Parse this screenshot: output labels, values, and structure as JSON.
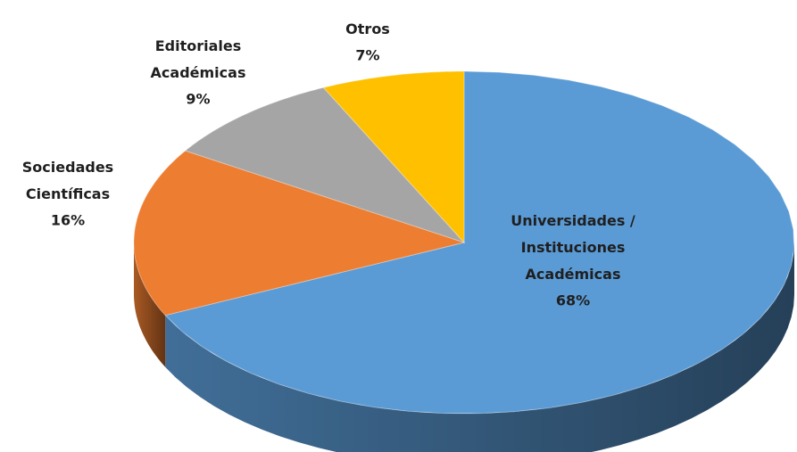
{
  "chart_data": {
    "type": "pie",
    "categories": [
      "Universidades /\nInstituciones\nAcadémicas",
      "Sociedades\nCientíficas",
      "Editoriales\nAcadémicas",
      "Otros"
    ],
    "values": [
      68,
      16,
      9,
      7
    ],
    "value_labels": [
      "68%",
      "16%",
      "9%",
      "7%"
    ],
    "colors": [
      "#5b9bd5",
      "#ed7d31",
      "#a5a5a5",
      "#ffc000"
    ]
  }
}
